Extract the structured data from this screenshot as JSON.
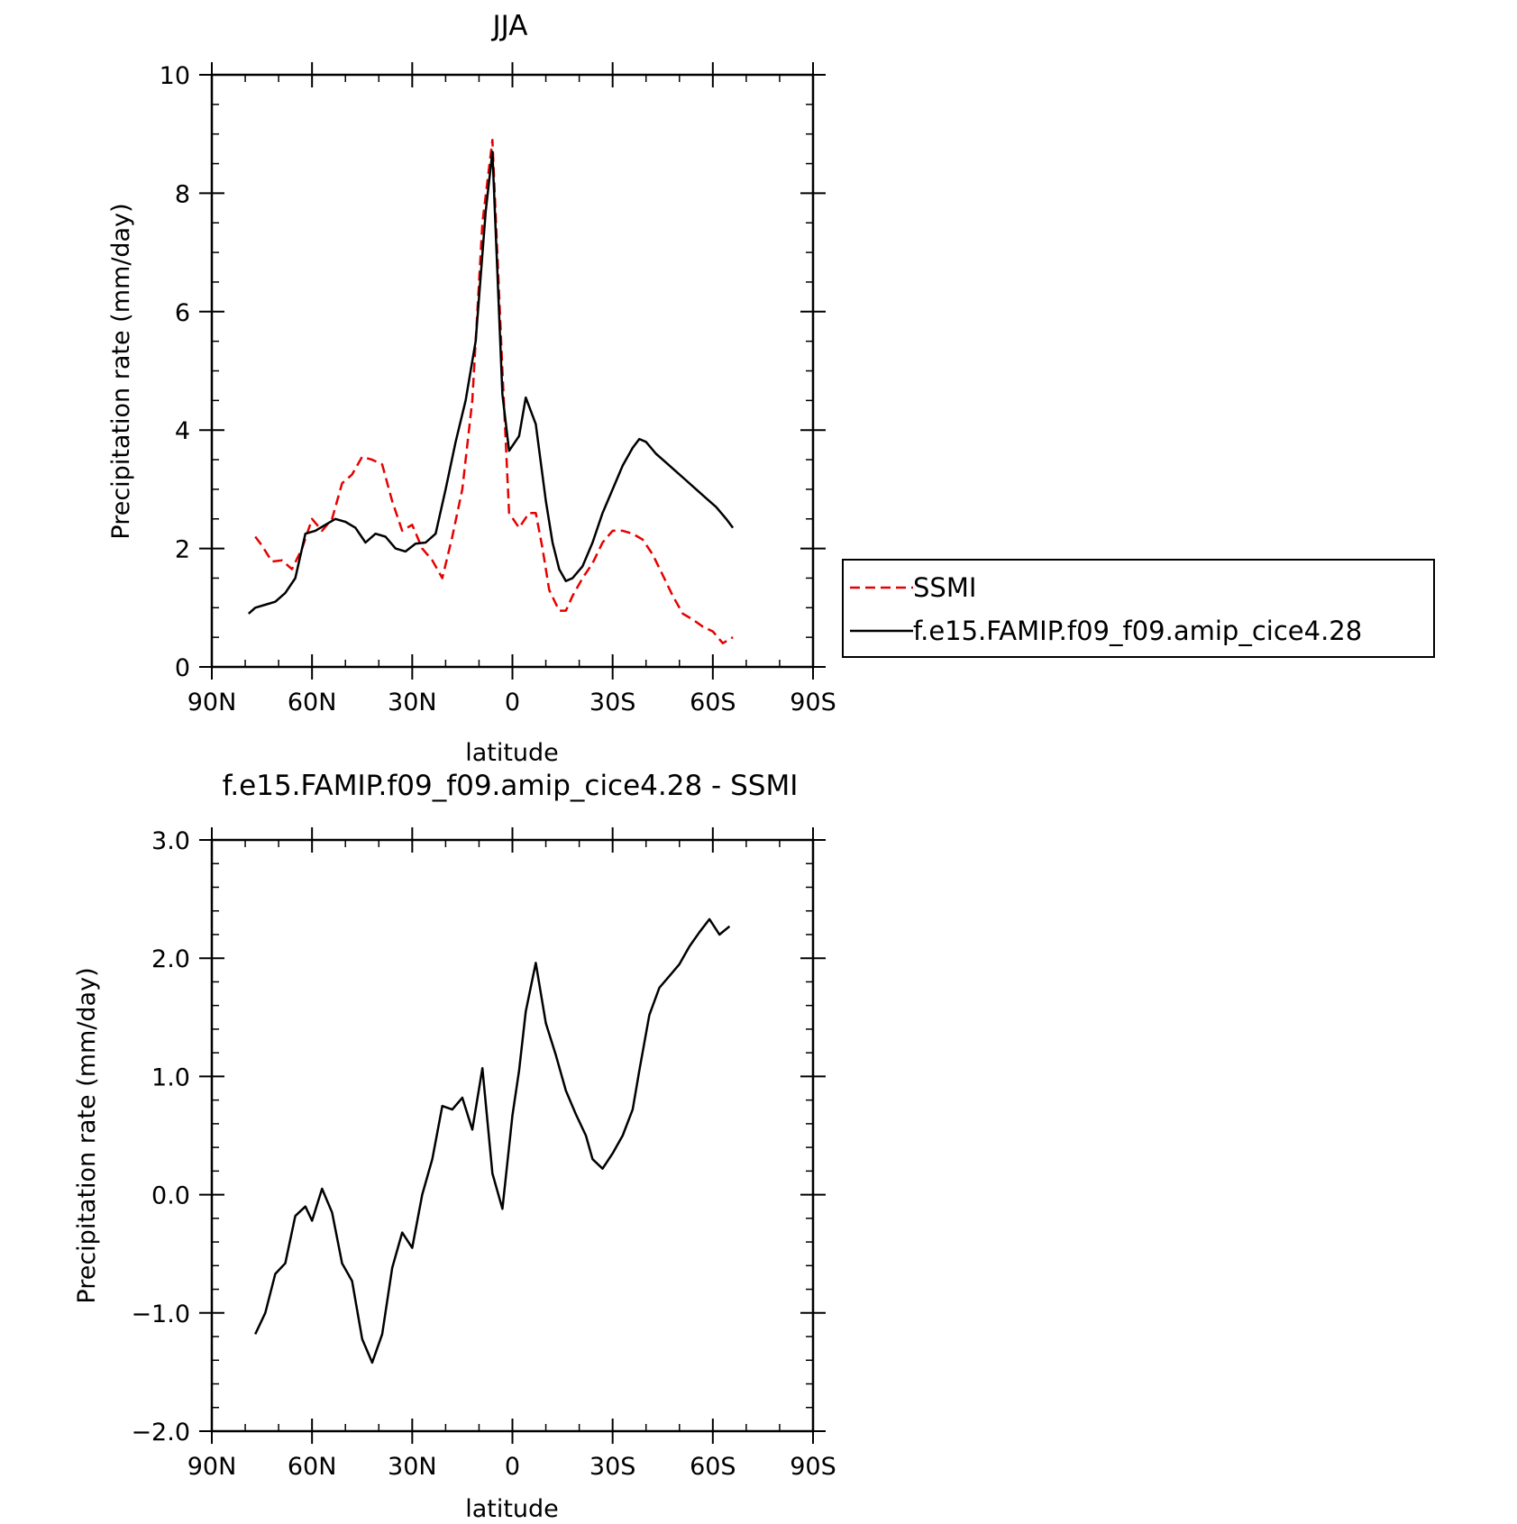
{
  "chart_data": [
    {
      "type": "line",
      "title": "JJA",
      "xlabel": "latitude",
      "ylabel": "Precipitation rate (mm/day)",
      "xlim": [
        90,
        -90
      ],
      "ylim": [
        0,
        10
      ],
      "x_ticks": [
        90,
        60,
        30,
        0,
        -30,
        -60,
        -90
      ],
      "x_tick_labels": [
        "90N",
        "60N",
        "30N",
        "0",
        "30S",
        "60S",
        "90S"
      ],
      "y_ticks": [
        0,
        2,
        4,
        6,
        8,
        10
      ],
      "y_tick_labels": [
        "0",
        "2",
        "4",
        "6",
        "8",
        "10"
      ],
      "legend_position": "right",
      "grid": false,
      "series": [
        {
          "name": "SSMI",
          "color": "#e60000",
          "dash": true,
          "x": [
            77,
            75,
            72,
            69,
            66,
            63,
            60,
            57,
            54,
            51,
            48,
            45,
            42,
            39,
            36,
            33,
            30,
            27,
            24,
            21,
            18,
            15,
            12,
            9,
            6,
            3,
            1,
            -2,
            -5,
            -7,
            -9,
            -11,
            -14,
            -16,
            -18,
            -21,
            -24,
            -27,
            -30,
            -33,
            -36,
            -39,
            -42,
            -45,
            -48,
            -51,
            -54,
            -57,
            -60,
            -63,
            -66
          ],
          "y": [
            2.2,
            2.05,
            1.78,
            1.8,
            1.65,
            2.0,
            2.5,
            2.3,
            2.5,
            3.1,
            3.25,
            3.55,
            3.5,
            3.42,
            2.8,
            2.3,
            2.4,
            2.0,
            1.8,
            1.5,
            2.2,
            3.0,
            4.5,
            7.5,
            8.9,
            5.0,
            2.6,
            2.35,
            2.6,
            2.6,
            2.0,
            1.3,
            0.95,
            0.95,
            1.2,
            1.5,
            1.75,
            2.1,
            2.3,
            2.3,
            2.25,
            2.15,
            1.9,
            1.55,
            1.2,
            0.9,
            0.8,
            0.68,
            0.6,
            0.4,
            0.5
          ]
        },
        {
          "name": "f.e15.FAMIP.f09_f09.amip_cice4.28",
          "color": "#000000",
          "dash": false,
          "x": [
            79,
            77,
            74,
            71,
            68,
            65,
            62,
            59,
            56,
            53,
            50,
            47,
            44,
            41,
            38,
            35,
            32,
            29,
            26,
            23,
            20,
            17,
            14,
            11,
            8,
            6,
            3,
            1,
            -2,
            -4,
            -7,
            -10,
            -12,
            -14,
            -16,
            -18,
            -21,
            -24,
            -27,
            -30,
            -33,
            -36,
            -38,
            -40,
            -43,
            -46,
            -49,
            -52,
            -55,
            -58,
            -61,
            -64,
            -66
          ],
          "y": [
            0.9,
            1.0,
            1.05,
            1.1,
            1.25,
            1.5,
            2.25,
            2.3,
            2.4,
            2.5,
            2.45,
            2.35,
            2.1,
            2.25,
            2.2,
            2.0,
            1.95,
            2.08,
            2.1,
            2.25,
            3.0,
            3.8,
            4.5,
            5.5,
            7.7,
            8.7,
            4.6,
            3.65,
            3.9,
            4.55,
            4.1,
            2.8,
            2.1,
            1.65,
            1.45,
            1.5,
            1.7,
            2.1,
            2.6,
            3.0,
            3.4,
            3.7,
            3.85,
            3.8,
            3.6,
            3.45,
            3.3,
            3.15,
            3.0,
            2.85,
            2.7,
            2.5,
            2.35
          ]
        }
      ]
    },
    {
      "type": "line",
      "title": "f.e15.FAMIP.f09_f09.amip_cice4.28 - SSMI",
      "xlabel": "latitude",
      "ylabel": "Precipitation rate (mm/day)",
      "xlim": [
        90,
        -90
      ],
      "ylim": [
        -2.0,
        3.0
      ],
      "x_ticks": [
        90,
        60,
        30,
        0,
        -30,
        -60,
        -90
      ],
      "x_tick_labels": [
        "90N",
        "60N",
        "30N",
        "0",
        "30S",
        "60S",
        "90S"
      ],
      "y_ticks": [
        -2.0,
        -1.0,
        0.0,
        1.0,
        2.0,
        3.0
      ],
      "y_tick_labels": [
        "−2.0",
        "−1.0",
        "0.0",
        "1.0",
        "2.0",
        "3.0"
      ],
      "grid": false,
      "series": [
        {
          "color": "#000000",
          "dash": false,
          "x": [
            77,
            74,
            71,
            68,
            65,
            62,
            60,
            57,
            54,
            51,
            48,
            45,
            42,
            39,
            36,
            33,
            30,
            27,
            24,
            21,
            18,
            15,
            12,
            9,
            6,
            3,
            0,
            -2,
            -4,
            -7,
            -10,
            -13,
            -16,
            -19,
            -22,
            -24,
            -27,
            -30,
            -33,
            -36,
            -38,
            -41,
            -44,
            -47,
            -50,
            -53,
            -56,
            -59,
            -62,
            -65
          ],
          "y": [
            -1.18,
            -1.0,
            -0.67,
            -0.58,
            -0.18,
            -0.1,
            -0.22,
            0.05,
            -0.15,
            -0.58,
            -0.73,
            -1.22,
            -1.42,
            -1.18,
            -0.62,
            -0.32,
            -0.45,
            0.0,
            0.3,
            0.75,
            0.72,
            0.82,
            0.55,
            1.07,
            0.18,
            -0.12,
            0.67,
            1.05,
            1.55,
            1.96,
            1.45,
            1.18,
            0.88,
            0.68,
            0.5,
            0.3,
            0.22,
            0.35,
            0.5,
            0.72,
            1.05,
            1.52,
            1.75,
            1.85,
            1.95,
            2.1,
            2.22,
            2.33,
            2.2,
            2.27
          ]
        }
      ]
    }
  ]
}
